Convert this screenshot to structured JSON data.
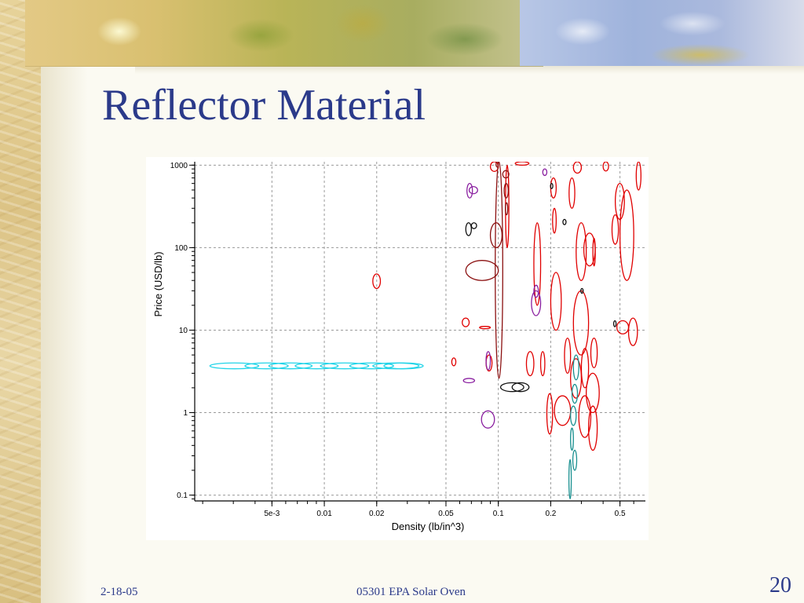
{
  "slide": {
    "title": "Reflector Material",
    "footer_date": "2-18-05",
    "footer_center": "05301 EPA Solar Oven",
    "slide_number": "20"
  },
  "colors": {
    "title": "#2b3a8a",
    "series": {
      "red": "#e00000",
      "dark_red": "#8b1010",
      "purple": "#8a1fa0",
      "black": "#111111",
      "teal": "#1a9090",
      "cyan": "#22d4e8"
    }
  },
  "chart_data": {
    "type": "scatter",
    "marker": "ellipse-outline",
    "xlabel": "Density (lb/in^3)",
    "ylabel": "Price (USD/lb)",
    "xscale": "log",
    "yscale": "log",
    "xlim": [
      0.0018,
      0.7
    ],
    "ylim": [
      0.085,
      1100
    ],
    "grid": true,
    "x_ticks": [
      {
        "value": 0.005,
        "label": "5e-3"
      },
      {
        "value": 0.01,
        "label": "0.01"
      },
      {
        "value": 0.02,
        "label": "0.02"
      },
      {
        "value": 0.05,
        "label": "0.05"
      },
      {
        "value": 0.1,
        "label": "0.1"
      },
      {
        "value": 0.2,
        "label": "0.2"
      },
      {
        "value": 0.5,
        "label": "0.5"
      }
    ],
    "y_ticks": [
      {
        "value": 0.1,
        "label": "0.1"
      },
      {
        "value": 1,
        "label": "1"
      },
      {
        "value": 10,
        "label": "10"
      },
      {
        "value": 100,
        "label": "100"
      },
      {
        "value": 1000,
        "label": "1000"
      }
    ],
    "series": [
      {
        "color_key": "cyan",
        "points": [
          {
            "x": [
              0.0022,
              0.0042
            ],
            "y": [
              3.4,
              4.0
            ]
          },
          {
            "x": [
              0.0035,
              0.0062
            ],
            "y": [
              3.4,
              4.0
            ]
          },
          {
            "x": [
              0.0048,
              0.0085
            ],
            "y": [
              3.4,
              4.0
            ]
          },
          {
            "x": [
              0.0068,
              0.012
            ],
            "y": [
              3.4,
              4.0
            ]
          },
          {
            "x": [
              0.0095,
              0.018
            ],
            "y": [
              3.4,
              4.0
            ]
          },
          {
            "x": [
              0.014,
              0.025
            ],
            "y": [
              3.4,
              4.0
            ]
          },
          {
            "x": [
              0.019,
              0.035
            ],
            "y": [
              3.4,
              4.0
            ]
          },
          {
            "x": [
              0.022,
              0.037
            ],
            "y": [
              3.4,
              4.0
            ]
          }
        ]
      },
      {
        "color_key": "red",
        "points": [
          {
            "x": [
              0.019,
              0.021
            ],
            "y": [
              32,
              48
            ]
          },
          {
            "x": [
              0.054,
              0.057
            ],
            "y": [
              3.7,
              4.6
            ]
          },
          {
            "x": [
              0.062,
              0.068
            ],
            "y": [
              11,
              14
            ]
          },
          {
            "x": [
              0.078,
              0.09
            ],
            "y": [
              10.5,
              11
            ]
          },
          {
            "x": [
              0.085,
              0.092
            ],
            "y": [
              3.2,
              5
            ]
          },
          {
            "x": [
              0.09,
              0.1
            ],
            "y": [
              840,
              1100
            ]
          },
          {
            "x": [
              0.11,
              0.115
            ],
            "y": [
              100,
              1000
            ]
          },
          {
            "x": [
              0.125,
              0.15
            ],
            "y": [
              1000,
              1100
            ]
          },
          {
            "x": [
              0.16,
              0.175
            ],
            "y": [
              20,
              200
            ]
          },
          {
            "x": [
              0.145,
              0.16
            ],
            "y": [
              2.8,
              5.5
            ]
          },
          {
            "x": [
              0.175,
              0.185
            ],
            "y": [
              2.8,
              5.5
            ]
          },
          {
            "x": [
              0.19,
              0.205
            ],
            "y": [
              0.55,
              1.7
            ]
          },
          {
            "x": [
              0.2,
              0.215
            ],
            "y": [
              400,
              700
            ]
          },
          {
            "x": [
              0.205,
              0.215
            ],
            "y": [
              150,
              300
            ]
          },
          {
            "x": [
              0.2,
              0.23
            ],
            "y": [
              10,
              50
            ]
          },
          {
            "x": [
              0.21,
              0.26
            ],
            "y": [
              0.7,
              1.6
            ]
          },
          {
            "x": [
              0.24,
              0.26
            ],
            "y": [
              3,
              8
            ]
          },
          {
            "x": [
              0.26,
              0.3
            ],
            "y": [
              1.5,
              4.5
            ]
          },
          {
            "x": [
              0.255,
              0.275
            ],
            "y": [
              300,
              700
            ]
          },
          {
            "x": [
              0.27,
              0.3
            ],
            "y": [
              800,
              1100
            ]
          },
          {
            "x": [
              0.28,
              0.32
            ],
            "y": [
              40,
              200
            ]
          },
          {
            "x": [
              0.27,
              0.33
            ],
            "y": [
              5,
              30
            ]
          },
          {
            "x": [
              0.29,
              0.34
            ],
            "y": [
              0.5,
              1.6
            ]
          },
          {
            "x": [
              0.3,
              0.33
            ],
            "y": [
              2,
              6
            ]
          },
          {
            "x": [
              0.31,
              0.36
            ],
            "y": [
              60,
              150
            ]
          },
          {
            "x": [
              0.32,
              0.38
            ],
            "y": [
              1,
              3
            ]
          },
          {
            "x": [
              0.33,
              0.37
            ],
            "y": [
              0.35,
              1.2
            ]
          },
          {
            "x": [
              0.34,
              0.37
            ],
            "y": [
              3.5,
              8
            ]
          },
          {
            "x": [
              0.35,
              0.36
            ],
            "y": [
              60,
              130
            ]
          },
          {
            "x": [
              0.4,
              0.43
            ],
            "y": [
              850,
              1100
            ]
          },
          {
            "x": [
              0.45,
              0.49
            ],
            "y": [
              110,
              250
            ]
          },
          {
            "x": [
              0.47,
              0.53
            ],
            "y": [
              220,
              600
            ]
          },
          {
            "x": [
              0.48,
              0.56
            ],
            "y": [
              9,
              13
            ]
          },
          {
            "x": [
              0.5,
              0.6
            ],
            "y": [
              40,
              500
            ]
          },
          {
            "x": [
              0.56,
              0.63
            ],
            "y": [
              6.5,
              14
            ]
          },
          {
            "x": [
              0.62,
              0.66
            ],
            "y": [
              500,
              1100
            ]
          }
        ]
      },
      {
        "color_key": "dark_red",
        "points": [
          {
            "x": [
              0.096,
              0.106
            ],
            "y": [
              2.6,
              1100
            ]
          },
          {
            "x": [
              0.065,
              0.1
            ],
            "y": [
              40,
              70
            ]
          },
          {
            "x": [
              0.09,
              0.105
            ],
            "y": [
              100,
              200
            ]
          },
          {
            "x": [
              0.097,
              0.1
            ],
            "y": [
              950,
              1100
            ]
          },
          {
            "x": [
              0.106,
              0.115
            ],
            "y": [
              700,
              860
            ]
          },
          {
            "x": [
              0.108,
              0.114
            ],
            "y": [
              400,
              600
            ]
          },
          {
            "x": [
              0.11,
              0.113
            ],
            "y": [
              250,
              350
            ]
          }
        ]
      },
      {
        "color_key": "purple",
        "points": [
          {
            "x": [
              0.066,
              0.071
            ],
            "y": [
              400,
              600
            ]
          },
          {
            "x": [
              0.068,
              0.076
            ],
            "y": [
              450,
              550
            ]
          },
          {
            "x": [
              0.063,
              0.073
            ],
            "y": [
              2.3,
              2.6
            ]
          },
          {
            "x": [
              0.085,
              0.09
            ],
            "y": [
              3.3,
              5.5
            ]
          },
          {
            "x": [
              0.08,
              0.095
            ],
            "y": [
              0.65,
              1.05
            ]
          },
          {
            "x": [
              0.155,
              0.175
            ],
            "y": [
              15,
              30
            ]
          },
          {
            "x": [
              0.16,
              0.17
            ],
            "y": [
              25,
              35
            ]
          },
          {
            "x": [
              0.18,
              0.19
            ],
            "y": [
              750,
              900
            ]
          }
        ]
      },
      {
        "color_key": "black",
        "points": [
          {
            "x": [
              0.065,
              0.07
            ],
            "y": [
              140,
              200
            ]
          },
          {
            "x": [
              0.07,
              0.075
            ],
            "y": [
              170,
              200
            ]
          },
          {
            "x": [
              0.103,
              0.14
            ],
            "y": [
              1.8,
              2.3
            ]
          },
          {
            "x": [
              0.12,
              0.15
            ],
            "y": [
              1.8,
              2.3
            ]
          },
          {
            "x": [
              0.2,
              0.205
            ],
            "y": [
              520,
              600
            ]
          },
          {
            "x": [
              0.235,
              0.245
            ],
            "y": [
              190,
              220
            ]
          },
          {
            "x": [
              0.3,
              0.305
            ],
            "y": [
              28,
              32
            ]
          },
          {
            "x": [
              0.46,
              0.475
            ],
            "y": [
              11,
              13
            ]
          }
        ]
      },
      {
        "color_key": "teal",
        "points": [
          {
            "x": [
              0.255,
              0.262
            ],
            "y": [
              0.09,
              0.27
            ]
          },
          {
            "x": [
              0.26,
              0.27
            ],
            "y": [
              0.35,
              0.65
            ]
          },
          {
            "x": [
              0.26,
              0.28
            ],
            "y": [
              0.7,
              1.2
            ]
          },
          {
            "x": [
              0.265,
              0.285
            ],
            "y": [
              1.3,
              2.2
            ]
          },
          {
            "x": [
              0.27,
              0.29
            ],
            "y": [
              2.5,
              5
            ]
          },
          {
            "x": [
              0.268,
              0.282
            ],
            "y": [
              0.2,
              0.35
            ]
          }
        ]
      }
    ]
  }
}
